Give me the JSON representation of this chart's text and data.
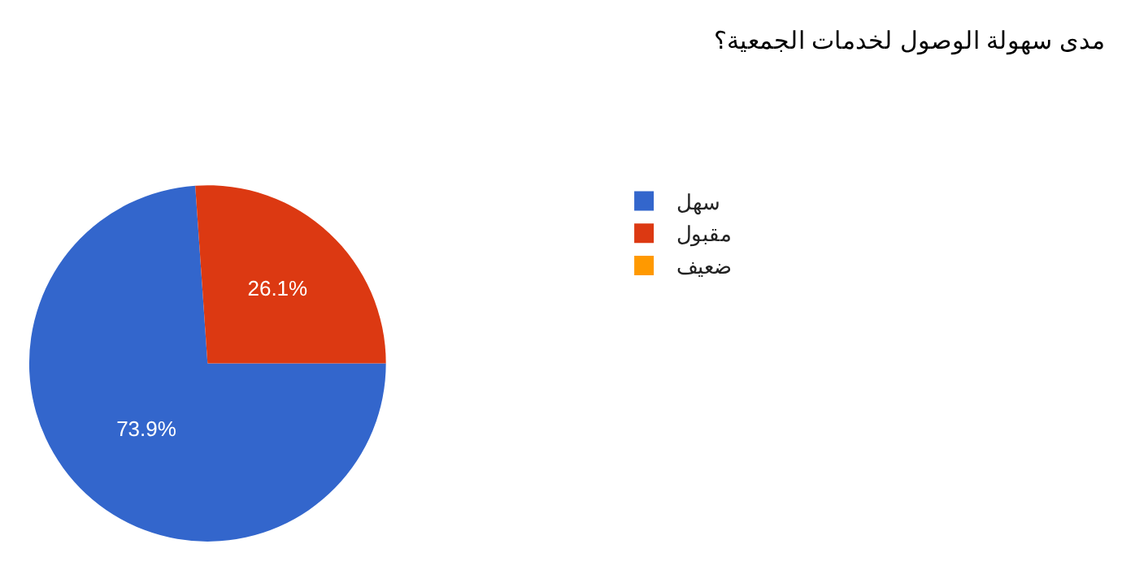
{
  "chart_data": {
    "type": "pie",
    "title": "مدى سهولة الوصول لخدمات الجمعية؟",
    "categories": [
      "سهل",
      "مقبول",
      "ضعيف"
    ],
    "values": [
      73.9,
      26.1,
      0
    ],
    "colors": [
      "#3366cc",
      "#dc3912",
      "#ff9900"
    ],
    "value_labels": [
      "73.9%",
      "26.1%",
      null
    ],
    "legend": "right"
  }
}
